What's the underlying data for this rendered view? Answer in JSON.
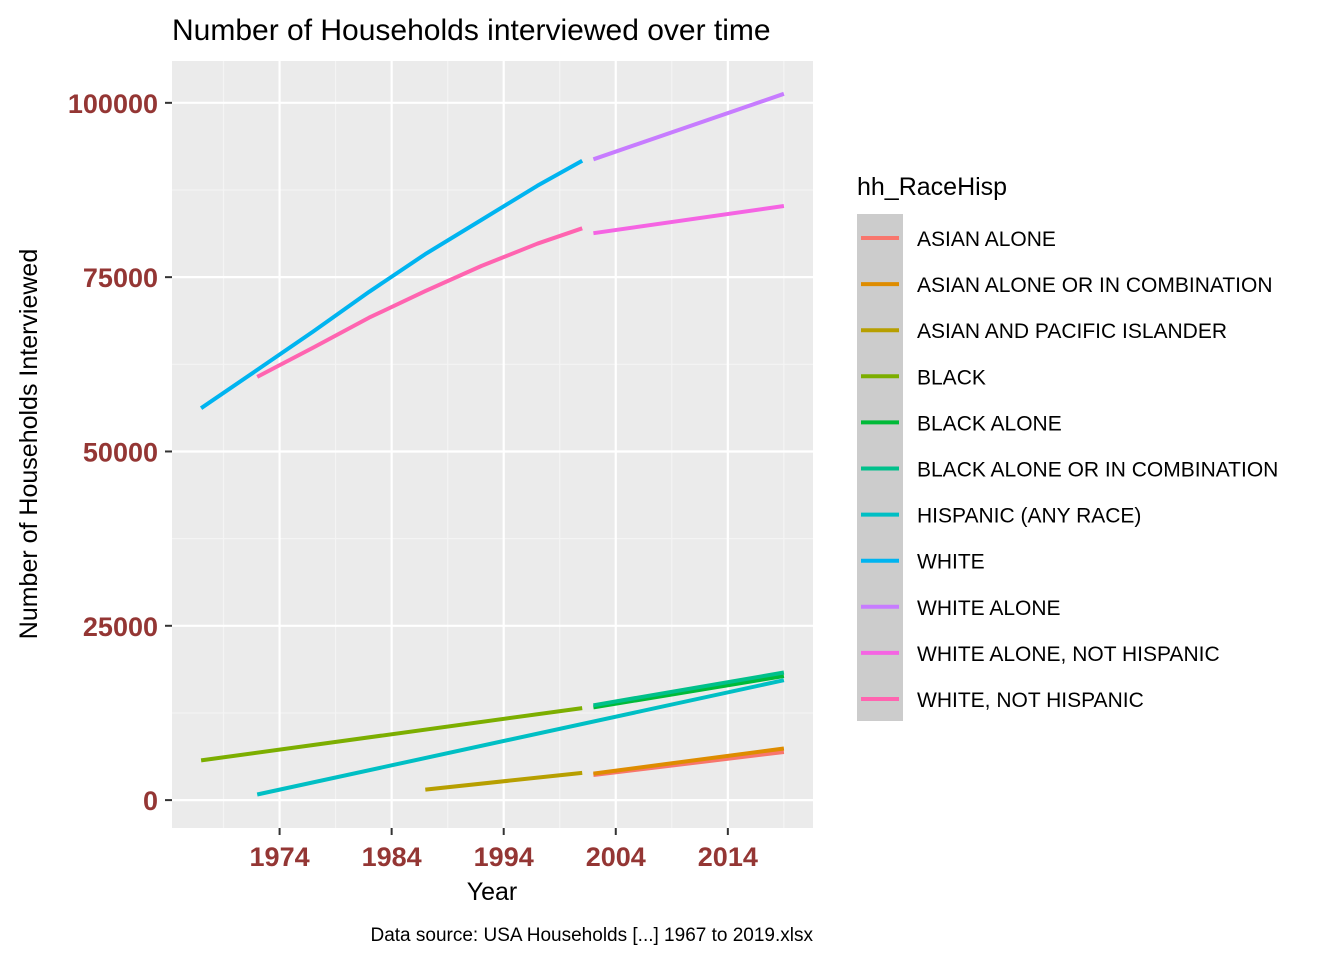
{
  "chart_data": {
    "type": "line",
    "title": "Number of Households interviewed over time",
    "xlabel": "Year",
    "ylabel": "Number of Households Interviewed",
    "caption": "Data source: USA Households [...] 1967 to 2019.xlsx",
    "xlim": [
      1964.4,
      2021.6
    ],
    "ylim": [
      -4000,
      106000
    ],
    "x_ticks": [
      1974,
      1984,
      1994,
      2004,
      2014
    ],
    "y_ticks": [
      0,
      25000,
      50000,
      75000,
      100000
    ],
    "grid": true,
    "legend": {
      "title": "hh_RaceHisp",
      "position": "right"
    },
    "series": [
      {
        "name": "ASIAN ALONE",
        "color": "#F8766D",
        "x": [
          2002,
          2019
        ],
        "y": [
          3600,
          6900
        ]
      },
      {
        "name": "ASIAN ALONE OR IN COMBINATION",
        "color": "#DE8C00",
        "x": [
          2002,
          2019
        ],
        "y": [
          3800,
          7400
        ]
      },
      {
        "name": "ASIAN AND PACIFIC ISLANDER",
        "color": "#B79F00",
        "x": [
          1987,
          2001
        ],
        "y": [
          1500,
          3900
        ]
      },
      {
        "name": "BLACK",
        "color": "#7CAE00",
        "x": [
          1967,
          2001
        ],
        "y": [
          5700,
          13200
        ]
      },
      {
        "name": "BLACK ALONE",
        "color": "#00BA38",
        "x": [
          2002,
          2019
        ],
        "y": [
          13300,
          17800
        ]
      },
      {
        "name": "BLACK ALONE OR IN COMBINATION",
        "color": "#00C08B",
        "x": [
          2002,
          2019
        ],
        "y": [
          13600,
          18300
        ]
      },
      {
        "name": "HISPANIC (ANY RACE)",
        "color": "#00BFC4",
        "x": [
          1972,
          2019
        ],
        "y": [
          800,
          17200
        ]
      },
      {
        "name": "WHITE",
        "color": "#00B4F0",
        "x": [
          1967,
          1972,
          1977,
          1982,
          1987,
          1992,
          1997,
          2001
        ],
        "y": [
          56200,
          61700,
          67200,
          72900,
          78300,
          83200,
          88100,
          91700
        ]
      },
      {
        "name": "WHITE ALONE",
        "color": "#C77CFF",
        "x": [
          2002,
          2019
        ],
        "y": [
          91900,
          101300
        ]
      },
      {
        "name": "WHITE ALONE, NOT HISPANIC",
        "color": "#F564E3",
        "x": [
          2002,
          2019
        ],
        "y": [
          81300,
          85200
        ]
      },
      {
        "name": "WHITE, NOT HISPANIC",
        "color": "#FF64B0",
        "x": [
          1972,
          1977,
          1982,
          1987,
          1992,
          1997,
          2001
        ],
        "y": [
          60700,
          64900,
          69200,
          73000,
          76600,
          79800,
          82000
        ]
      }
    ]
  }
}
